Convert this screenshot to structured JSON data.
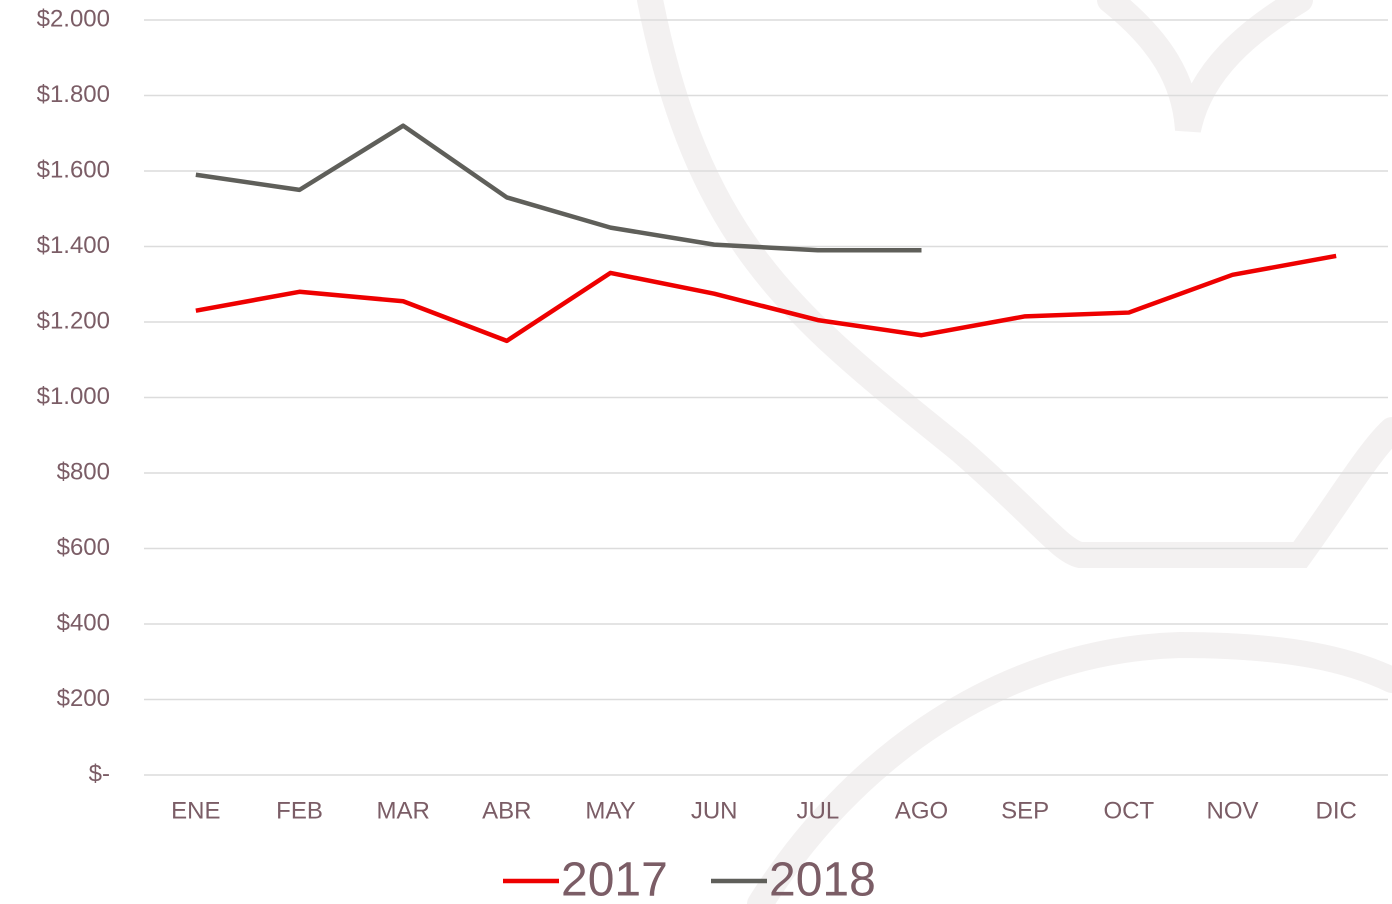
{
  "chart_data": {
    "type": "line",
    "categories": [
      "ENE",
      "FEB",
      "MAR",
      "ABR",
      "MAY",
      "JUN",
      "JUL",
      "AGO",
      "SEP",
      "OCT",
      "NOV",
      "DIC"
    ],
    "series": [
      {
        "name": "2017",
        "color": "#ee0000",
        "values": [
          1230,
          1280,
          1255,
          1150,
          1330,
          1275,
          1205,
          1165,
          1215,
          1225,
          1325,
          1375
        ]
      },
      {
        "name": "2018",
        "color": "#5f5f5a",
        "values": [
          1590,
          1550,
          1720,
          1530,
          1450,
          1405,
          1390,
          1390,
          null,
          null,
          null,
          null
        ]
      }
    ],
    "ylim": [
      0,
      2000
    ],
    "yticks": [
      {
        "value": 0,
        "label": "$-"
      },
      {
        "value": 200,
        "label": "$200"
      },
      {
        "value": 400,
        "label": "$400"
      },
      {
        "value": 600,
        "label": "$600"
      },
      {
        "value": 800,
        "label": "$800"
      },
      {
        "value": 1000,
        "label": "$1.000"
      },
      {
        "value": 1200,
        "label": "$1.200"
      },
      {
        "value": 1400,
        "label": "$1.400"
      },
      {
        "value": 1600,
        "label": "$1.600"
      },
      {
        "value": 1800,
        "label": "$1.800"
      },
      {
        "value": 2000,
        "label": "$2.000"
      }
    ],
    "grid": true,
    "legend": "bottom"
  }
}
